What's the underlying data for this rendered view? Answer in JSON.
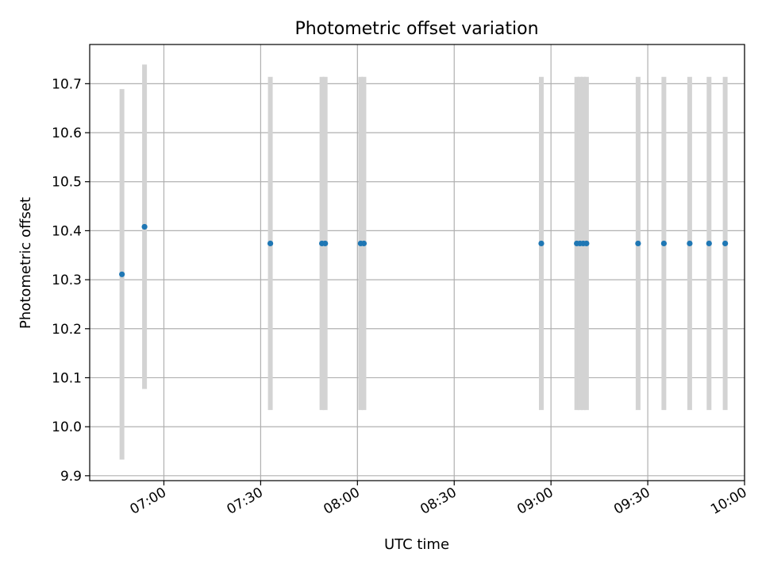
{
  "chart_data": {
    "type": "scatter",
    "title": "Photometric offset variation",
    "xlabel": "UTC time",
    "ylabel": "Photometric offset",
    "grid": true,
    "x_ticks": [
      "07:00",
      "07:30",
      "08:00",
      "08:30",
      "09:00",
      "09:30",
      "10:00"
    ],
    "y_ticks": [
      "9.9",
      "10.0",
      "10.1",
      "10.2",
      "10.3",
      "10.4",
      "10.5",
      "10.6",
      "10.7"
    ],
    "xlim": [
      "06:37",
      "10:00"
    ],
    "ylim": [
      9.89,
      10.78
    ],
    "colors": {
      "points": "#1f77b4",
      "error_bars": "#d3d3d3"
    },
    "points": [
      {
        "time": "06:47",
        "y": 10.311,
        "yerr": 0.378
      },
      {
        "time": "06:54",
        "y": 10.408,
        "yerr": 0.331
      },
      {
        "time": "07:33",
        "y": 10.374,
        "yerr": 0.34
      },
      {
        "time": "07:49",
        "y": 10.374,
        "yerr": 0.34
      },
      {
        "time": "07:50",
        "y": 10.374,
        "yerr": 0.34
      },
      {
        "time": "08:01",
        "y": 10.374,
        "yerr": 0.34
      },
      {
        "time": "08:02",
        "y": 10.374,
        "yerr": 0.34
      },
      {
        "time": "08:57",
        "y": 10.374,
        "yerr": 0.34
      },
      {
        "time": "09:08",
        "y": 10.374,
        "yerr": 0.34
      },
      {
        "time": "09:09",
        "y": 10.374,
        "yerr": 0.34
      },
      {
        "time": "09:10",
        "y": 10.374,
        "yerr": 0.34
      },
      {
        "time": "09:11",
        "y": 10.374,
        "yerr": 0.34
      },
      {
        "time": "09:27",
        "y": 10.374,
        "yerr": 0.34
      },
      {
        "time": "09:35",
        "y": 10.374,
        "yerr": 0.34
      },
      {
        "time": "09:43",
        "y": 10.374,
        "yerr": 0.34
      },
      {
        "time": "09:49",
        "y": 10.374,
        "yerr": 0.34
      },
      {
        "time": "09:54",
        "y": 10.374,
        "yerr": 0.34
      }
    ]
  }
}
